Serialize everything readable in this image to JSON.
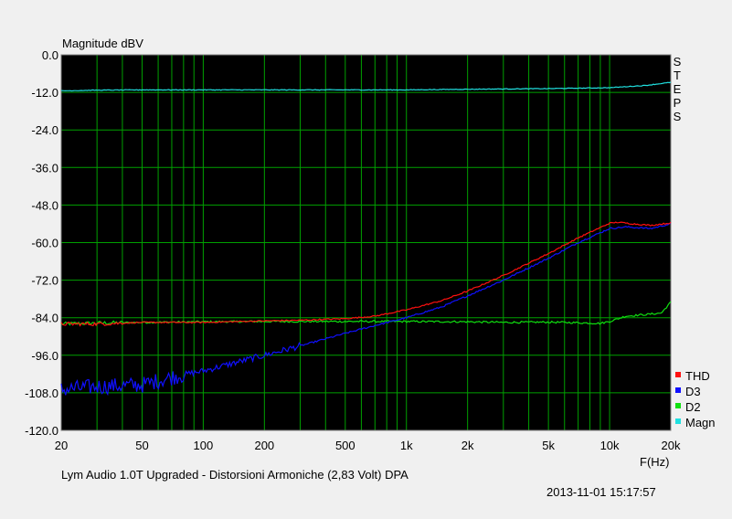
{
  "chart_data": {
    "type": "line",
    "title": "",
    "ylabel": "Magnitude dBV",
    "xlabel": "F(Hz)",
    "side_label": "STEPS",
    "xscale": "log",
    "xlim": [
      20,
      20000
    ],
    "ylim": [
      -120,
      0
    ],
    "yticks": [
      0,
      -12,
      -24,
      -36,
      -48,
      -60,
      -72,
      -84,
      -96,
      -108,
      -120
    ],
    "ytick_labels": [
      "0.0",
      "-12.0",
      "-24.0",
      "-36.0",
      "-48.0",
      "-60.0",
      "-72.0",
      "-84.0",
      "-96.0",
      "-108.0",
      "-120.0"
    ],
    "xticks": [
      20,
      50,
      100,
      200,
      500,
      1000,
      2000,
      5000,
      10000,
      20000
    ],
    "xtick_labels": [
      "20",
      "50",
      "100",
      "200",
      "500",
      "1k",
      "2k",
      "5k",
      "10k",
      "20k"
    ],
    "grid": true,
    "background": "#000000",
    "grid_color": "#00a000",
    "legend_position": "right-bottom",
    "series": [
      {
        "name": "THD",
        "color": "#ff1010",
        "x": [
          20,
          30,
          50,
          100,
          200,
          300,
          500,
          700,
          1000,
          1500,
          2000,
          3000,
          5000,
          7000,
          10000,
          11000,
          13000,
          16000,
          20000
        ],
        "y": [
          -86,
          -86,
          -85.5,
          -85.5,
          -85,
          -84.8,
          -84.3,
          -83.5,
          -81.5,
          -78.5,
          -75.5,
          -70.5,
          -63.5,
          -58.5,
          -53.8,
          -53.5,
          -54,
          -54.5,
          -53.7
        ]
      },
      {
        "name": "D3",
        "color": "#1010ff",
        "x": [
          20,
          30,
          50,
          70,
          100,
          200,
          300,
          500,
          700,
          1000,
          1500,
          2000,
          3000,
          5000,
          7000,
          10000,
          12000,
          16000,
          20000
        ],
        "y": [
          -107,
          -106,
          -105.5,
          -103,
          -101,
          -96,
          -93,
          -89,
          -86.5,
          -84,
          -80.5,
          -77,
          -72,
          -65,
          -60,
          -55.5,
          -55,
          -55.5,
          -54
        ]
      },
      {
        "name": "D2",
        "color": "#10e010",
        "x": [
          20,
          30,
          50,
          100,
          200,
          500,
          1000,
          2000,
          3000,
          5000,
          7000,
          9000,
          10000,
          12000,
          15000,
          18000,
          20000
        ],
        "y": [
          -86,
          -85.7,
          -85.5,
          -85.3,
          -85.2,
          -85.2,
          -85.2,
          -85.3,
          -85.5,
          -85.4,
          -85.6,
          -85.8,
          -85.2,
          -83.5,
          -83,
          -82.5,
          -79
        ]
      },
      {
        "name": "Magn",
        "color": "#20e0e0",
        "x": [
          20,
          30,
          50,
          100,
          500,
          1000,
          2000,
          5000,
          10000,
          15000,
          20000
        ],
        "y": [
          -11.5,
          -11.3,
          -11.2,
          -11.2,
          -11.2,
          -11.2,
          -11,
          -10.8,
          -10.5,
          -9.8,
          -8.8
        ]
      }
    ]
  },
  "footer": {
    "caption": "Lym Audio 1.0T Upgraded - Distorsioni Armoniche (2,83 Volt)     DPA",
    "timestamp": "2013-11-01 15:17:57"
  }
}
